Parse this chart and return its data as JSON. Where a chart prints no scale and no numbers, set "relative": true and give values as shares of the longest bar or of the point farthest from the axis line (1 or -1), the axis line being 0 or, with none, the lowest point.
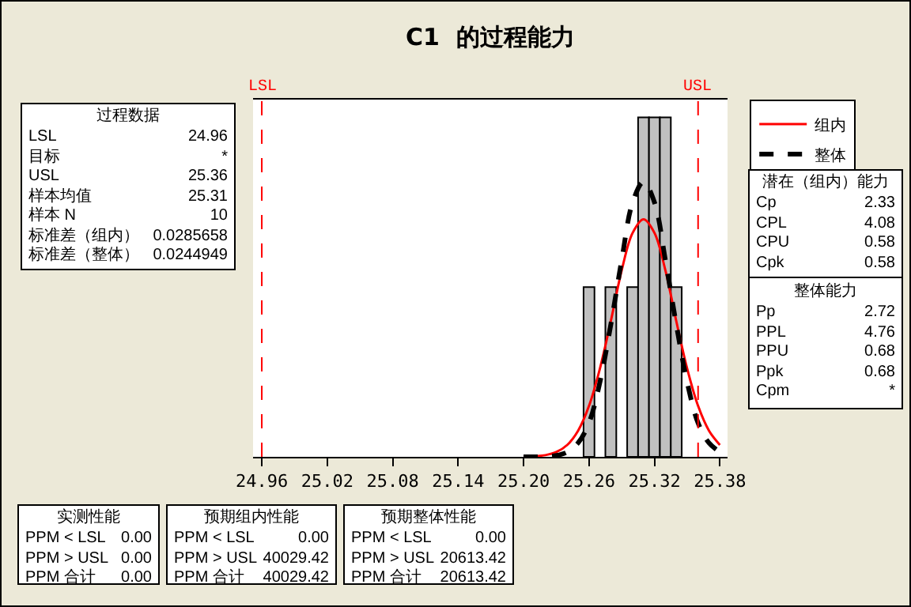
{
  "chart_data": {
    "type": "histogram",
    "title": "C1  的过程能力",
    "relative": true,
    "bins": [
      25.255,
      25.265,
      25.275,
      25.285,
      25.295,
      25.305,
      25.315,
      25.325,
      25.335,
      25.345
    ],
    "values": [
      0.5,
      0,
      0.5,
      0,
      0.5,
      1,
      1,
      1,
      0.5
    ],
    "color": "#c0c0c0",
    "series": [
      {
        "name": "组内",
        "type": "line",
        "color": "#ff0000",
        "line_style": "solid",
        "x": [
          25.2,
          25.21,
          25.22,
          25.23,
          25.24,
          25.25,
          25.26,
          25.27,
          25.28,
          25.29,
          25.3,
          25.31,
          25.32,
          25.33,
          25.34,
          25.35,
          25.36,
          25.37,
          25.38
        ],
        "values": [
          0.0,
          0.002,
          0.005,
          0.014,
          0.035,
          0.077,
          0.15,
          0.26,
          0.4,
          0.55,
          0.66,
          0.7,
          0.66,
          0.55,
          0.4,
          0.26,
          0.15,
          0.077,
          0.035
        ]
      },
      {
        "name": "整体",
        "type": "line",
        "color": "#000000",
        "line_style": "dashed",
        "x": [
          25.2,
          25.21,
          25.22,
          25.23,
          25.24,
          25.25,
          25.26,
          25.27,
          25.28,
          25.29,
          25.3,
          25.31,
          25.32,
          25.33,
          25.34,
          25.35,
          25.36,
          25.37,
          25.38
        ],
        "values": [
          0.0,
          0.0,
          0.001,
          0.004,
          0.014,
          0.041,
          0.1,
          0.22,
          0.39,
          0.58,
          0.75,
          0.81,
          0.75,
          0.58,
          0.39,
          0.22,
          0.1,
          0.041,
          0.014
        ]
      }
    ],
    "xlim": [
      24.952,
      25.387
    ],
    "xticks": [
      24.96,
      25.02,
      25.08,
      25.14,
      {
        "value": 25.2,
        "label": "25.20"
      },
      25.26,
      25.32,
      25.38
    ],
    "ref_lines": [
      {
        "axis": "x",
        "value": 24.96,
        "label": "LSL",
        "color": "#ff0000",
        "line_style": "dashed"
      },
      {
        "axis": "x",
        "value": 25.36,
        "label": "USL",
        "color": "#ff0000",
        "line_style": "dashed"
      }
    ],
    "grid": false,
    "legend": "right",
    "marker": "none",
    "annotations": [
      "过程数据",
      "LSL",
      "24.96",
      "目标",
      "*",
      "USL",
      "25.36",
      "样本均值",
      "25.31",
      "样本 N",
      "10",
      "标准差（组内）",
      "0.0285658",
      "标准差（整体）",
      "0.0244949",
      "潜在（组内）能力",
      "Cp",
      "2.33",
      "CPL",
      "4.08",
      "CPU",
      "0.58",
      "Cpk",
      "0.58",
      "整体能力",
      "Pp",
      "2.72",
      "PPL",
      "4.76",
      "PPU",
      "0.68",
      "Ppk",
      "0.68",
      "Cpm",
      "*",
      "实测性能",
      "PPM < LSL",
      "0.00",
      "PPM > USL",
      "0.00",
      "PPM 合计",
      "0.00",
      "预期组内性能",
      "PPM < LSL",
      "0.00",
      "PPM > USL",
      "40029.42",
      "PPM 合计",
      "40029.42",
      "预期整体性能",
      "PPM < LSL",
      "0.00",
      "PPM > USL",
      "20613.42",
      "PPM 合计",
      "20613.42"
    ]
  }
}
